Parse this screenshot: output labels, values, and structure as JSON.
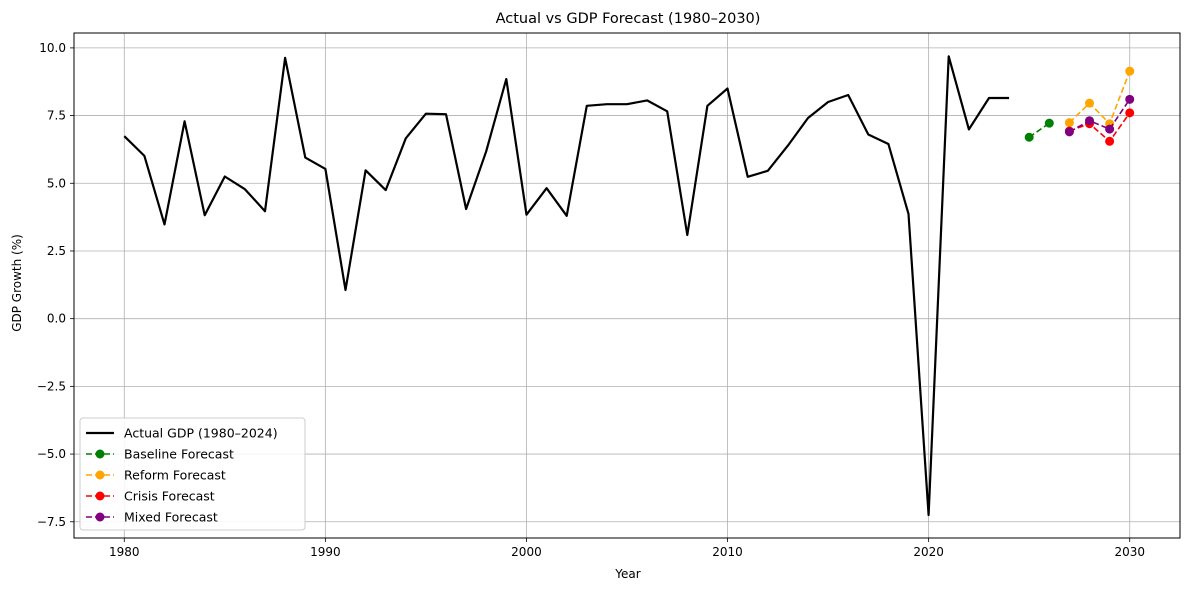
{
  "chart_data": {
    "type": "line",
    "title": "Actual vs GDP Forecast (1980–2030)",
    "xlabel": "Year",
    "ylabel": "GDP Growth (%)",
    "xlim": [
      1977.5,
      2032.5
    ],
    "ylim": [
      -8.1,
      10.55
    ],
    "xticks": [
      1980,
      1990,
      2000,
      2010,
      2020,
      2030
    ],
    "yticks": [
      -7.5,
      -5.0,
      -2.5,
      0.0,
      2.5,
      5.0,
      7.5,
      10.0
    ],
    "xtick_labels": [
      "1980",
      "1990",
      "2000",
      "2010",
      "2020",
      "2030"
    ],
    "ytick_labels": [
      "−7.5",
      "−5.0",
      "−2.5",
      "0.0",
      "2.5",
      "5.0",
      "7.5",
      "10.0"
    ],
    "grid": true,
    "legend_position": "lower-left",
    "series": [
      {
        "name": "Actual GDP (1980–2024)",
        "color": "#000000",
        "style": "solid",
        "marker": false,
        "x": [
          1980,
          1981,
          1982,
          1983,
          1984,
          1985,
          1986,
          1987,
          1988,
          1989,
          1990,
          1991,
          1992,
          1993,
          1994,
          1995,
          1996,
          1997,
          1998,
          1999,
          2000,
          2001,
          2002,
          2003,
          2004,
          2005,
          2006,
          2007,
          2008,
          2009,
          2010,
          2011,
          2012,
          2013,
          2014,
          2015,
          2016,
          2017,
          2018,
          2019,
          2020,
          2021,
          2022,
          2023,
          2024
        ],
        "y": [
          6.74,
          6.01,
          3.48,
          7.29,
          3.82,
          5.25,
          4.78,
          3.97,
          9.63,
          5.95,
          5.53,
          1.06,
          5.48,
          4.75,
          6.66,
          7.57,
          7.55,
          4.05,
          6.18,
          8.85,
          3.84,
          4.82,
          3.8,
          7.86,
          7.92,
          7.92,
          8.06,
          7.66,
          3.09,
          7.86,
          8.5,
          5.24,
          5.46,
          6.39,
          7.41,
          8.0,
          8.26,
          6.8,
          6.45,
          3.87,
          -7.25,
          9.69,
          6.99,
          8.15,
          8.15
        ]
      },
      {
        "name": "Baseline Forecast",
        "color": "#008000",
        "style": "dashed",
        "marker": true,
        "x": [
          2025,
          2026
        ],
        "y": [
          6.7,
          7.22
        ]
      },
      {
        "name": "Reform Forecast",
        "color": "#FFA500",
        "style": "dashed",
        "marker": true,
        "x": [
          2027,
          2028,
          2029,
          2030
        ],
        "y": [
          7.24,
          7.96,
          7.2,
          9.14
        ]
      },
      {
        "name": "Crisis Forecast",
        "color": "#FF0000",
        "style": "dashed",
        "marker": true,
        "x": [
          2027,
          2028,
          2029,
          2030
        ],
        "y": [
          6.93,
          7.2,
          6.55,
          7.6
        ]
      },
      {
        "name": "Mixed Forecast",
        "color": "#800080",
        "style": "dashed",
        "marker": true,
        "x": [
          2027,
          2028,
          2029,
          2030
        ],
        "y": [
          6.9,
          7.31,
          7.0,
          8.1
        ]
      }
    ]
  }
}
